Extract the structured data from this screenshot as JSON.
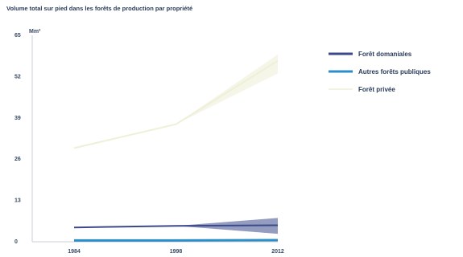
{
  "chart_data": {
    "type": "line",
    "title": "Volume total sur pied dans les forêts de production par propriété",
    "unit_label": "Mm³",
    "x": [
      1984,
      1998,
      2012
    ],
    "x_ticks": [
      "1984",
      "1998",
      "2012"
    ],
    "ylim": [
      0,
      65
    ],
    "y_ticks": [
      0,
      13,
      26,
      39,
      52,
      65
    ],
    "grid": false,
    "legend_position": "right",
    "series": [
      {
        "name": "Forêt domaniales",
        "color": "#3d4a8a",
        "values": [
          4.5,
          5.0,
          5.2
        ],
        "band_lower": [
          4.5,
          5.0,
          2.5
        ],
        "band_upper": [
          4.5,
          5.0,
          7.5
        ]
      },
      {
        "name": "Autres forêts publiques",
        "color": "#2a8fc8",
        "values": [
          0.4,
          0.4,
          0.5
        ]
      },
      {
        "name": "Forêt privée",
        "color": "#eef0d8",
        "values": [
          29.5,
          37,
          57
        ],
        "band_lower": [
          29.5,
          37,
          53
        ],
        "band_upper": [
          29.5,
          37,
          59
        ]
      }
    ]
  }
}
